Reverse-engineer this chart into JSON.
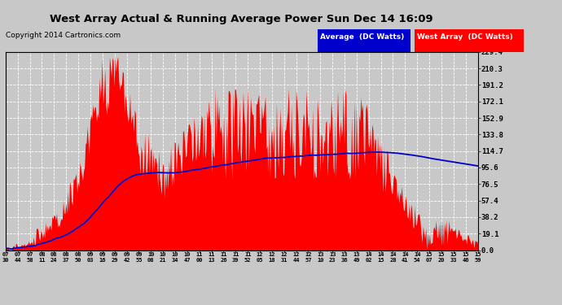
{
  "title": "West Array Actual & Running Average Power Sun Dec 14 16:09",
  "copyright": "Copyright 2014 Cartronics.com",
  "legend_avg": "Average  (DC Watts)",
  "legend_west": "West Array  (DC Watts)",
  "yticks": [
    0.0,
    19.1,
    38.2,
    57.4,
    76.5,
    95.6,
    114.7,
    133.8,
    152.9,
    172.1,
    191.2,
    210.3,
    229.4
  ],
  "ymax": 229.4,
  "background_color": "#c8c8c8",
  "plot_bg_color": "#c8c8c8",
  "bar_color": "#ff0000",
  "avg_line_color": "#0000cc",
  "title_color": "#000000",
  "grid_color": "#ffffff",
  "xtick_labels": [
    "07:30",
    "07:44",
    "07:58",
    "08:11",
    "08:24",
    "08:37",
    "08:50",
    "09:03",
    "09:16",
    "09:29",
    "09:42",
    "09:55",
    "10:08",
    "10:21",
    "10:34",
    "10:47",
    "11:00",
    "11:13",
    "11:26",
    "11:39",
    "11:52",
    "12:05",
    "12:18",
    "12:31",
    "12:44",
    "12:57",
    "13:10",
    "13:23",
    "13:36",
    "13:49",
    "14:02",
    "14:15",
    "14:28",
    "14:41",
    "14:54",
    "15:07",
    "15:20",
    "15:33",
    "15:46",
    "15:59"
  ]
}
